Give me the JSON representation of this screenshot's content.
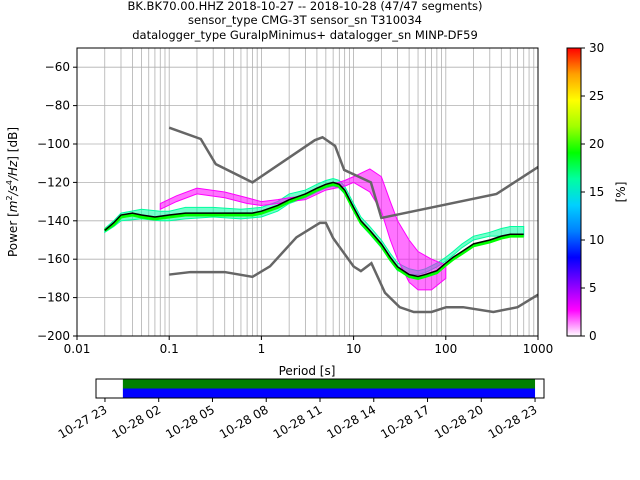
{
  "title": {
    "line1": "BK.BK70.00.HHZ   2018-10-27 -- 2018-10-28  (47/47 segments)",
    "line2": "sensor_type CMG-3T sensor_sn T310034",
    "line3": "datalogger_type GuralpMinimus+ datalogger_sn MINP-DF59"
  },
  "chart_data": [
    {
      "type": "heatmap",
      "subtype": "probabilistic-power-spectral-density",
      "xlabel": "Period [s]",
      "ylabel_parts": [
        "Power [",
        "m",
        "2",
        "/s",
        "4",
        "/Hz",
        "] [dB]"
      ],
      "xscale": "log",
      "xlim": [
        0.01,
        1000
      ],
      "ylim": [
        -200,
        -50
      ],
      "grid": true,
      "x_ticks": [
        {
          "value": 0.01,
          "label": "0.01"
        },
        {
          "value": 0.1,
          "label": "0.1"
        },
        {
          "value": 1,
          "label": "1"
        },
        {
          "value": 10,
          "label": "10"
        },
        {
          "value": 100,
          "label": "100"
        },
        {
          "value": 1000,
          "label": "1000"
        }
      ],
      "y_ticks": [
        {
          "value": -60,
          "label": "−60"
        },
        {
          "value": -80,
          "label": "−80"
        },
        {
          "value": -100,
          "label": "−100"
        },
        {
          "value": -120,
          "label": "−120"
        },
        {
          "value": -140,
          "label": "−140"
        },
        {
          "value": -160,
          "label": "−160"
        },
        {
          "value": -180,
          "label": "−180"
        },
        {
          "value": -200,
          "label": "−200"
        }
      ],
      "colorbar": {
        "label": "[%]",
        "range": [
          0,
          30
        ],
        "ticks": [
          {
            "value": 0,
            "label": "0"
          },
          {
            "value": 5,
            "label": "5"
          },
          {
            "value": 10,
            "label": "10"
          },
          {
            "value": 15,
            "label": "15"
          },
          {
            "value": 20,
            "label": "20"
          },
          {
            "value": 25,
            "label": "25"
          },
          {
            "value": 30,
            "label": "30"
          }
        ],
        "colors": [
          "#ffffff",
          "#ff00ff",
          "#8000ff",
          "#0000ff",
          "#0080ff",
          "#00d0ff",
          "#00ffa0",
          "#00ff00",
          "#a0ff00",
          "#ffff00",
          "#ffa000",
          "#ff0000"
        ]
      },
      "noise_models": {
        "color": "#666666",
        "high": {
          "x": [
            0.1,
            0.22,
            0.32,
            0.8,
            3.8,
            4.6,
            6.3,
            7.9,
            15.4,
            20,
            354.8,
            1000
          ],
          "y": [
            -91.5,
            -97.4,
            -110.5,
            -120,
            -98,
            -96.5,
            -101,
            -113.5,
            -120,
            -138.5,
            -126,
            -112
          ]
        },
        "low": {
          "x": [
            0.1,
            0.17,
            0.4,
            0.8,
            1.24,
            2.4,
            4.3,
            5,
            6,
            10,
            12,
            15.6,
            21.9,
            31.6,
            45,
            70,
            101,
            154,
            328,
            600,
            1000
          ],
          "y": [
            -168,
            -166.7,
            -166.7,
            -169.2,
            -163.7,
            -148.6,
            -141.1,
            -141.1,
            -149,
            -163.8,
            -166.2,
            -162.1,
            -177.5,
            -185,
            -187.5,
            -187.5,
            -185,
            -185,
            -187.5,
            -185,
            -178.5
          ]
        }
      },
      "density_bands": [
        {
          "name": "",
          "color": "#00ffa0",
          "x": [
            0.02,
            0.025,
            0.03,
            0.05,
            0.08,
            0.1,
            0.15,
            0.3,
            0.6,
            1,
            1.5,
            2,
            3,
            4,
            5,
            6,
            7,
            8,
            10,
            12,
            15,
            20,
            25,
            30,
            40,
            50,
            60,
            80,
            100,
            120,
            150,
            200,
            300,
            400,
            500,
            700
          ],
          "lo": [
            -146,
            -143,
            -140,
            -139,
            -140,
            -140,
            -139,
            -138,
            -139,
            -138,
            -135,
            -131,
            -128,
            -125,
            -123,
            -122,
            -123,
            -126,
            -135,
            -142,
            -147,
            -154,
            -161,
            -166,
            -168,
            -168,
            -167,
            -164,
            -161,
            -158,
            -154,
            -150,
            -148,
            -148,
            -148,
            -148
          ],
          "hi": [
            -144,
            -140,
            -136,
            -134,
            -135,
            -135,
            -133,
            -133,
            -134,
            -133,
            -130,
            -126,
            -124,
            -121,
            -119,
            -118,
            -119,
            -122,
            -131,
            -138,
            -143,
            -150,
            -157,
            -162,
            -165,
            -166,
            -165,
            -162,
            -159,
            -156,
            -152,
            -148,
            -146,
            -144,
            -143,
            -143
          ]
        },
        {
          "name": "",
          "color": "#ff00ff",
          "x": [
            0.08,
            0.12,
            0.2,
            0.4,
            0.7,
            1,
            1.5,
            2,
            3,
            5,
            8,
            10,
            15,
            20,
            25,
            30,
            40,
            50,
            70,
            100
          ],
          "lo": [
            -134,
            -130,
            -126,
            -128,
            -131,
            -132,
            -131,
            -130,
            -129,
            -124,
            -122,
            -120,
            -125,
            -135,
            -150,
            -160,
            -172,
            -176,
            -176,
            -170
          ],
          "hi": [
            -131,
            -127,
            -123,
            -125,
            -128,
            -130,
            -129,
            -128,
            -127,
            -122,
            -119,
            -117,
            -113,
            -117,
            -130,
            -140,
            -150,
            -156,
            -160,
            -163
          ]
        }
      ],
      "mean_curve": {
        "color": "#000000",
        "x": [
          0.02,
          0.025,
          0.03,
          0.04,
          0.05,
          0.07,
          0.1,
          0.15,
          0.2,
          0.3,
          0.5,
          0.8,
          1,
          1.5,
          2,
          3,
          4,
          5,
          6,
          7,
          8,
          10,
          12,
          15,
          20,
          25,
          30,
          40,
          50,
          60,
          80,
          100,
          120,
          150,
          200,
          300,
          400,
          500,
          700
        ],
        "y": [
          -145,
          -141,
          -137,
          -136,
          -137,
          -138,
          -137,
          -136,
          -136,
          -136,
          -136,
          -136,
          -135,
          -132,
          -129,
          -126,
          -123,
          -121,
          -120,
          -121,
          -124,
          -133,
          -140,
          -145,
          -152,
          -159,
          -164,
          -168,
          -169,
          -168,
          -166,
          -162,
          -159,
          -156,
          -152,
          -150,
          -148,
          -147,
          -147
        ]
      },
      "mode_curve": {
        "color": "#00ff00",
        "x": [
          0.02,
          0.025,
          0.03,
          0.04,
          0.05,
          0.07,
          0.1,
          0.15,
          0.2,
          0.3,
          0.5,
          0.8,
          1,
          1.5,
          2,
          3,
          4,
          5,
          6,
          7,
          8,
          10,
          12,
          15,
          20,
          25,
          30,
          40,
          50,
          60,
          80,
          100,
          120,
          150,
          200,
          300,
          400,
          500,
          700
        ],
        "y": [
          -145,
          -142,
          -138,
          -137,
          -138,
          -139,
          -138,
          -137,
          -137,
          -137,
          -137,
          -137,
          -136,
          -133,
          -130,
          -127,
          -124,
          -122,
          -121,
          -122,
          -125,
          -134,
          -141,
          -146,
          -153,
          -160,
          -165,
          -169,
          -170,
          -169,
          -167,
          -163,
          -160,
          -157,
          -153,
          -151,
          -149,
          -148,
          -148
        ]
      }
    },
    {
      "type": "timeline",
      "x_ticks": [
        "10-27 23",
        "10-28 02",
        "10-28 05",
        "10-28 08",
        "10-28 11",
        "10-28 14",
        "10-28 17",
        "10-28 20",
        "10-28 23"
      ],
      "xlim_hours": [
        -0.5,
        24.5
      ],
      "tick_hours": [
        0,
        3,
        6,
        9,
        12,
        15,
        18,
        21,
        24
      ],
      "coverage_hours": [
        1,
        24
      ],
      "colors": {
        "upper": "#008000",
        "lower": "#0000ff"
      }
    }
  ]
}
